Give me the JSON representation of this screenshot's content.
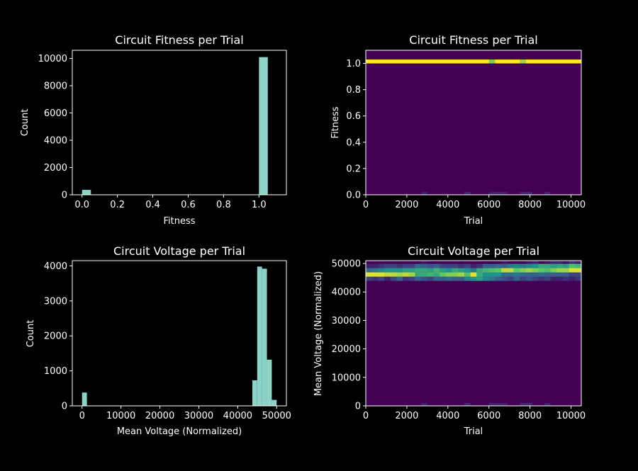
{
  "chart_data": [
    {
      "type": "bar",
      "title": "Circuit Fitness per Trial",
      "xlabel": "Fitness",
      "ylabel": "Count",
      "xlim": [
        -0.055,
        1.155
      ],
      "ylim": [
        0,
        10600
      ],
      "xticks": [
        "0.0",
        "0.2",
        "0.4",
        "0.6",
        "0.8",
        "1.0"
      ],
      "yticks": [
        "0",
        "2000",
        "4000",
        "6000",
        "8000",
        "10000"
      ],
      "bar_color": "#8dd3c7",
      "bins": [
        {
          "x0": 0.0,
          "x1": 0.05,
          "count": 360
        },
        {
          "x0": 1.0,
          "x1": 1.05,
          "count": 10100
        }
      ]
    },
    {
      "type": "heatmap",
      "title": "Circuit Fitness per Trial",
      "xlabel": "Trial",
      "ylabel": "Fitness",
      "xlim": [
        0,
        10500
      ],
      "ylim": [
        0,
        1.1
      ],
      "xticks": [
        "0",
        "2000",
        "4000",
        "6000",
        "8000",
        "10000"
      ],
      "yticks": [
        "0.0",
        "0.2",
        "0.4",
        "0.6",
        "0.8",
        "1.0"
      ],
      "background_color": "#440154",
      "band": {
        "y0": 1.0,
        "y1": 1.03
      },
      "x_bins": 35,
      "band_levels": [
        1,
        1,
        1,
        1,
        1,
        1,
        1,
        1,
        1,
        1,
        1,
        1,
        1,
        1,
        1,
        1,
        1,
        1,
        1,
        1,
        0.8,
        1,
        1,
        1,
        1,
        0.85,
        1,
        1,
        1,
        1,
        1,
        1,
        1,
        1,
        1
      ],
      "low_cells": [
        {
          "x0": 2700,
          "x1": 3000,
          "level": 0.1
        },
        {
          "x0": 4800,
          "x1": 5100,
          "level": 0.12
        },
        {
          "x0": 6000,
          "x1": 6900,
          "level": 0.1
        },
        {
          "x0": 7500,
          "x1": 8100,
          "level": 0.12
        },
        {
          "x0": 8700,
          "x1": 9000,
          "level": 0.1
        }
      ]
    },
    {
      "type": "bar",
      "title": "Circuit Voltage per Trial",
      "xlabel": "Mean Voltage (Normalized)",
      "ylabel": "Count",
      "xlim": [
        -2500,
        52500
      ],
      "ylim": [
        0,
        4150
      ],
      "xticks": [
        "0",
        "10000",
        "20000",
        "30000",
        "40000",
        "50000"
      ],
      "yticks": [
        "0",
        "1000",
        "2000",
        "3000",
        "4000"
      ],
      "bar_color": "#8dd3c7",
      "bins": [
        {
          "x0": 0,
          "x1": 1250,
          "count": 380
        },
        {
          "x0": 43750,
          "x1": 45000,
          "count": 730
        },
        {
          "x0": 45000,
          "x1": 46250,
          "count": 3980
        },
        {
          "x0": 46250,
          "x1": 47500,
          "count": 3920
        },
        {
          "x0": 47500,
          "x1": 48750,
          "count": 1320
        },
        {
          "x0": 48750,
          "x1": 50000,
          "count": 170
        }
      ]
    },
    {
      "type": "heatmap",
      "title": "Circuit Voltage per Trial",
      "xlabel": "Trial",
      "ylabel": "Mean Voltage (Normalized)",
      "xlim": [
        0,
        10500
      ],
      "ylim": [
        0,
        51000
      ],
      "xticks": [
        "0",
        "2000",
        "4000",
        "6000",
        "8000",
        "10000"
      ],
      "yticks": [
        "0",
        "10000",
        "20000",
        "30000",
        "40000",
        "50000"
      ],
      "background_color": "#440154",
      "row_edges": [
        44000,
        45500,
        47000,
        48500,
        50000,
        51000
      ],
      "x_bins": 35,
      "cells": [
        [
          0.2,
          0.15,
          0.2,
          0.1,
          0.2,
          0.3,
          0.15,
          0.2,
          0.3,
          0.25,
          0.2,
          0.3,
          0.3,
          0.35,
          0.3,
          0.3,
          0.45,
          0.5,
          0.55,
          0.45,
          0.4,
          0.3,
          0.25,
          0.2,
          0.3,
          0.2,
          0.25,
          0.2,
          0.15,
          0.2,
          0.1,
          0.1,
          0.15,
          0.1,
          0.15
        ],
        [
          0.95,
          0.95,
          0.95,
          0.9,
          0.9,
          0.85,
          0.9,
          0.85,
          0.6,
          0.6,
          0.65,
          0.6,
          0.75,
          0.8,
          0.8,
          0.85,
          0.7,
          0.95,
          0.6,
          0.5,
          0.5,
          0.5,
          0.35,
          0.35,
          0.4,
          0.35,
          0.3,
          0.3,
          0.35,
          0.3,
          0.3,
          0.3,
          0.3,
          0.2,
          0.2
        ],
        [
          0.35,
          0.4,
          0.45,
          0.5,
          0.5,
          0.5,
          0.55,
          0.55,
          0.6,
          0.6,
          0.55,
          0.65,
          0.55,
          0.5,
          0.6,
          0.55,
          0.5,
          0.4,
          0.6,
          0.65,
          0.7,
          0.75,
          0.9,
          0.9,
          0.75,
          0.8,
          0.85,
          0.8,
          0.75,
          0.7,
          0.8,
          0.85,
          0.85,
          0.95,
          0.95
        ],
        [
          0.1,
          0.1,
          0.15,
          0.2,
          0.2,
          0.15,
          0.2,
          0.2,
          0.35,
          0.3,
          0.25,
          0.3,
          0.2,
          0.2,
          0.2,
          0.15,
          0.2,
          0.1,
          0.15,
          0.3,
          0.3,
          0.35,
          0.3,
          0.4,
          0.45,
          0.4,
          0.45,
          0.5,
          0.6,
          0.6,
          0.55,
          0.6,
          0.55,
          0.7,
          0.65
        ],
        [
          0,
          0,
          0,
          0,
          0,
          0,
          0,
          0,
          0,
          0.05,
          0,
          0,
          0,
          0,
          0,
          0,
          0,
          0,
          0,
          0,
          0,
          0,
          0.05,
          0,
          0,
          0,
          0.05,
          0.1,
          0,
          0.05,
          0.1,
          0.1,
          0.05,
          0.15,
          0.1
        ]
      ],
      "low_cells": [
        {
          "x0": 2700,
          "x1": 3000,
          "level": 0.1
        },
        {
          "x0": 4800,
          "x1": 5100,
          "level": 0.12
        },
        {
          "x0": 6000,
          "x1": 6900,
          "level": 0.1
        },
        {
          "x0": 7500,
          "x1": 8100,
          "level": 0.12
        },
        {
          "x0": 8700,
          "x1": 9000,
          "level": 0.1
        }
      ]
    }
  ]
}
